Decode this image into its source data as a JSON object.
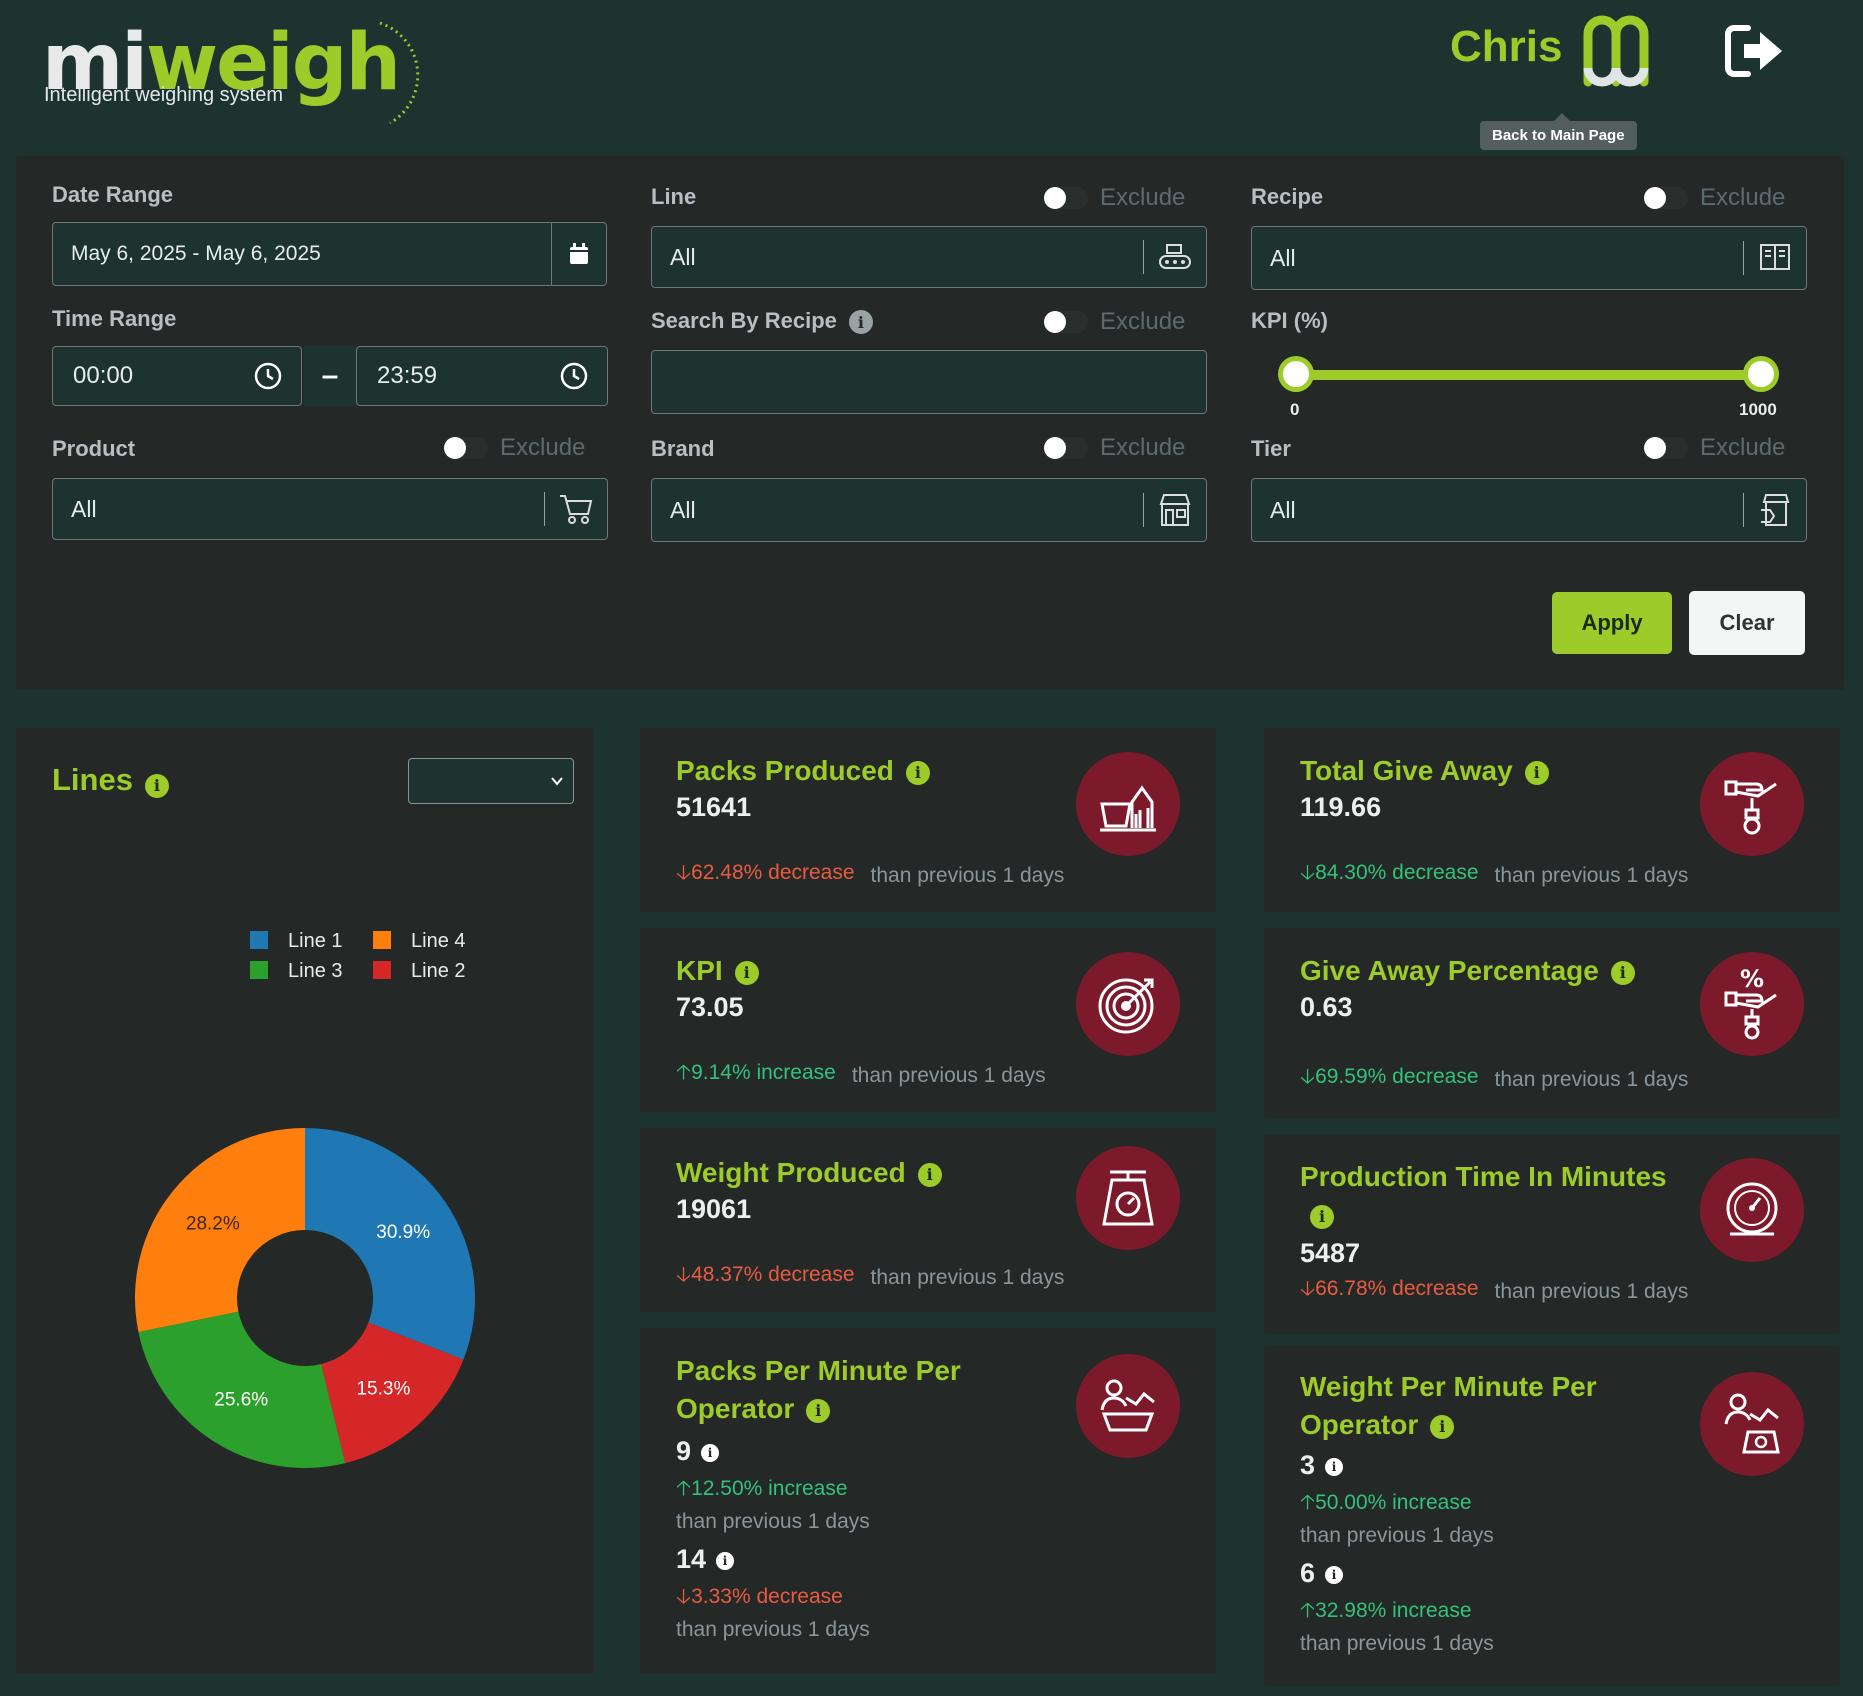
{
  "header": {
    "logo_mi": "mi",
    "logo_weigh": "weigh",
    "logo_tagline": "Intelligent weighing system",
    "user_name": "Chris",
    "tooltip": "Back to Main Page"
  },
  "filters": {
    "date_range": {
      "label": "Date Range",
      "value": "May 6, 2025 - May 6, 2025"
    },
    "time_range": {
      "label": "Time Range",
      "start": "00:00",
      "end": "23:59",
      "separator": "–"
    },
    "product": {
      "label": "Product",
      "exclude_label": "Exclude",
      "value": "All"
    },
    "line": {
      "label": "Line",
      "exclude_label": "Exclude",
      "value": "All"
    },
    "search_recipe": {
      "label": "Search By Recipe",
      "exclude_label": "Exclude",
      "value": ""
    },
    "brand": {
      "label": "Brand",
      "exclude_label": "Exclude",
      "value": "All"
    },
    "recipe": {
      "label": "Recipe",
      "exclude_label": "Exclude",
      "value": "All"
    },
    "kpi": {
      "label": "KPI (%)",
      "min_label": "0",
      "max_label": "1000",
      "min_value": 0,
      "max_value": 1000
    },
    "tier": {
      "label": "Tier",
      "exclude_label": "Exclude",
      "value": "All"
    },
    "apply_label": "Apply",
    "clear_label": "Clear"
  },
  "lines_panel": {
    "title": "Lines",
    "select_value": ""
  },
  "chart_data": {
    "type": "pie",
    "donut": true,
    "categories": [
      "Line 1",
      "Line 2",
      "Line 3",
      "Line 4"
    ],
    "values": [
      30.9,
      15.3,
      25.6,
      28.2
    ],
    "labels": [
      "30.9%",
      "15.3%",
      "25.6%",
      "28.2%"
    ],
    "colors": [
      "#1f77b4",
      "#d62728",
      "#2ca02c",
      "#ff7f0e"
    ],
    "legend": [
      "Line 1",
      "Line 4",
      "Line 3",
      "Line 2"
    ],
    "legend_colors": [
      "#1f77b4",
      "#ff7f0e",
      "#2ca02c",
      "#d62728"
    ],
    "legend_placement": "top"
  },
  "kpis": {
    "packs_produced": {
      "title": "Packs Produced",
      "value": "51641",
      "change": "62.48% decrease",
      "direction": "down",
      "compare": "than previous 1 days",
      "icon": "basket-growth-icon"
    },
    "kpi": {
      "title": "KPI",
      "value": "73.05",
      "change": "9.14% increase",
      "direction": "up",
      "compare": "than previous 1 days",
      "icon": "target-icon"
    },
    "weight_produced": {
      "title": "Weight Produced",
      "value": "19061",
      "change": "48.37% decrease",
      "direction": "down",
      "compare": "than previous 1 days",
      "icon": "scale-icon"
    },
    "packs_per_minute": {
      "title_line1": "Packs Per Minute Per",
      "title_line2": "Operator",
      "value1": "9",
      "change1": "12.50% increase",
      "direction1": "up",
      "compare1": "than previous 1 days",
      "value2": "14",
      "change2": "3.33% decrease",
      "direction2": "down",
      "compare2": "than previous 1 days",
      "icon": "operator-basket-icon"
    },
    "total_give_away": {
      "title": "Total Give Away",
      "value": "119.66",
      "change": "84.30% decrease",
      "direction": "down-good",
      "compare": "than previous 1 days",
      "icon": "hand-giveaway-icon"
    },
    "give_away_pct": {
      "title": "Give Away Percentage",
      "value": "0.63",
      "change": "69.59% decrease",
      "direction": "down-good",
      "compare": "than previous 1 days",
      "icon": "percent-hand-icon"
    },
    "production_time": {
      "title": "Production Time In Minutes",
      "value": "5487",
      "change": "66.78% decrease",
      "direction": "down",
      "compare": "than previous 1 days",
      "icon": "gauge-icon"
    },
    "weight_per_minute": {
      "title_line1": "Weight Per Minute Per",
      "title_line2": "Operator",
      "value1": "3",
      "change1": "50.00% increase",
      "direction1": "up",
      "compare1": "than previous 1 days",
      "value2": "6",
      "change2": "32.98% increase",
      "direction2": "up",
      "compare2": "than previous 1 days",
      "icon": "operator-scale-icon"
    }
  },
  "colors": {
    "accent": "#9ccb2a",
    "background": "#1c3330",
    "panel": "#242827",
    "icon_circle": "#7c1a2c",
    "decrease": "#ea5a41",
    "increase": "#33c27a"
  }
}
